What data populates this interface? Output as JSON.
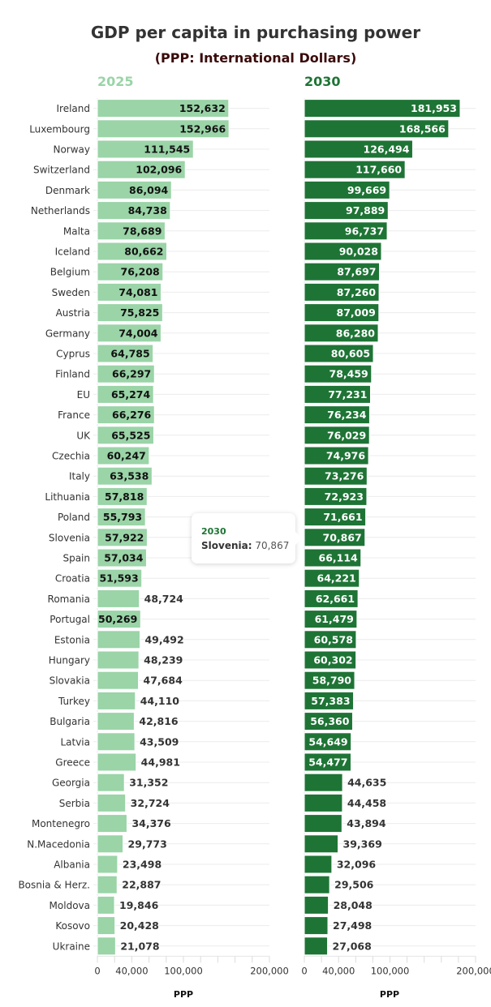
{
  "chart_data": {
    "type": "bar",
    "orientation": "horizontal",
    "title": "GDP per capita in purchasing power",
    "subtitle": "(PPP: International Dollars)",
    "categories": [
      "Ireland",
      "Luxembourg",
      "Norway",
      "Switzerland",
      "Denmark",
      "Netherlands",
      "Malta",
      "Iceland",
      "Belgium",
      "Sweden",
      "Austria",
      "Germany",
      "Cyprus",
      "Finland",
      "EU",
      "France",
      "UK",
      "Czechia",
      "Italy",
      "Lithuania",
      "Poland",
      "Slovenia",
      "Spain",
      "Croatia",
      "Romania",
      "Portugal",
      "Estonia",
      "Hungary",
      "Slovakia",
      "Turkey",
      "Bulgaria",
      "Latvia",
      "Greece",
      "Georgia",
      "Serbia",
      "Montenegro",
      "N.Macedonia",
      "Albania",
      "Bosnia & Herz.",
      "Moldova",
      "Kosovo",
      "Ukraine"
    ],
    "series": [
      {
        "name": "2025",
        "color": "#9ad4a7",
        "values": [
          152632,
          152966,
          111545,
          102096,
          86094,
          84738,
          78689,
          80662,
          76208,
          74081,
          75825,
          74004,
          64785,
          66297,
          65274,
          66276,
          65525,
          60247,
          63538,
          57818,
          55793,
          57922,
          57034,
          51593,
          48724,
          50269,
          49492,
          48239,
          47684,
          44110,
          42816,
          43509,
          44981,
          31352,
          32724,
          34376,
          29773,
          23498,
          22887,
          19846,
          20428,
          21078
        ]
      },
      {
        "name": "2030",
        "color": "#1e7435",
        "values": [
          181953,
          168566,
          126494,
          117660,
          99669,
          97889,
          96737,
          90028,
          87697,
          87260,
          87009,
          86280,
          80605,
          78459,
          77231,
          76234,
          76029,
          74976,
          73276,
          72923,
          71661,
          70867,
          66114,
          64221,
          62661,
          61479,
          60578,
          60302,
          58790,
          57383,
          56360,
          54649,
          54477,
          44635,
          44458,
          43894,
          39369,
          32096,
          29506,
          28048,
          27498,
          27068
        ]
      }
    ],
    "xlabel": "PPP",
    "ylabel": "",
    "xlim": [
      0,
      200000
    ],
    "xticks": [
      0,
      20000,
      40000,
      60000,
      80000,
      100000,
      120000,
      140000,
      160000,
      180000,
      200000
    ],
    "xtick_labels": [
      {
        "value": 0,
        "label": "0"
      },
      {
        "value": 40000,
        "label": "40,000"
      },
      {
        "value": 100000,
        "label": "100,000"
      },
      {
        "value": 200000,
        "label": "200,000"
      }
    ],
    "label_inside_threshold": 50000,
    "grid": true,
    "legend": "none",
    "layout": "two panels side by side (2025 left, 2030 right)"
  },
  "tooltip": {
    "series": "2030",
    "category": "Slovenia:",
    "value": "70,867"
  }
}
